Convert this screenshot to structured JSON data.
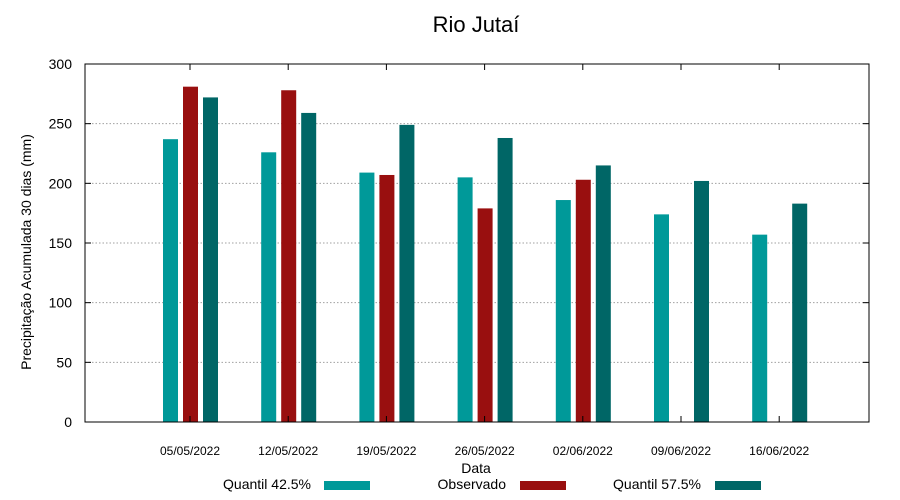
{
  "chart_data": {
    "type": "bar",
    "title": "Rio Jutaí",
    "xlabel": "Data",
    "ylabel": "Precipitação Acumulada 30 dias (mm)",
    "ylim": [
      0,
      300
    ],
    "yticks": [
      0,
      50,
      100,
      150,
      200,
      250,
      300
    ],
    "grid": true,
    "legend_position": "bottom",
    "categories": [
      "05/05/2022",
      "12/05/2022",
      "19/05/2022",
      "26/05/2022",
      "02/06/2022",
      "09/06/2022",
      "16/06/2022"
    ],
    "series": [
      {
        "name": "Quantil 42.5%",
        "color": "#009999",
        "values": [
          237,
          226,
          209,
          205,
          186,
          174,
          157
        ]
      },
      {
        "name": "Observado",
        "color": "#990f0f",
        "values": [
          281,
          278,
          207,
          179,
          203,
          null,
          null
        ]
      },
      {
        "name": "Quantil 57.5%",
        "color": "#006666",
        "values": [
          272,
          259,
          249,
          238,
          215,
          202,
          183
        ]
      }
    ]
  }
}
